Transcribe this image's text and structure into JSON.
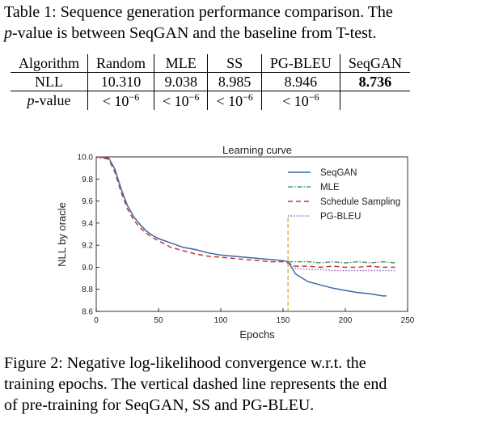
{
  "table_caption": {
    "line1": "Table 1: Sequence generation performance comparison. The",
    "p_symbol": "p",
    "line2_rest": "-value is between SeqGAN and the baseline from T-test."
  },
  "table": {
    "header": [
      "Algorithm",
      "Random",
      "MLE",
      "SS",
      "PG-BLEU",
      "SeqGAN"
    ],
    "nll_label": "NLL",
    "nll": [
      "10.310",
      "9.038",
      "8.985",
      "8.946",
      "8.736"
    ],
    "pvalue_label_p": "p",
    "pvalue_label_rest": "-value",
    "pvalue_base": "< 10",
    "pvalue_exp": "−6",
    "best": "SeqGAN"
  },
  "figure_caption": {
    "line1": "Figure 2: Negative log-likelihood convergence w.r.t. the",
    "line2": "training epochs. The vertical dashed line represents the end",
    "line3": "of pre-training for SeqGAN, SS and PG-BLEU."
  },
  "chart_data": {
    "type": "line",
    "title": "Learning curve",
    "xlabel": "Epochs",
    "ylabel": "NLL by oracle",
    "xlim": [
      0,
      250
    ],
    "ylim": [
      8.6,
      10.0
    ],
    "xticks": [
      "0",
      "50",
      "100",
      "150",
      "200",
      "250"
    ],
    "yticks": [
      "8.6",
      "8.8",
      "9.0",
      "9.2",
      "9.4",
      "9.6",
      "9.8",
      "10.0"
    ],
    "legend_position": "top-right",
    "grid": false,
    "pretrain_end_epoch": 154,
    "vline_top": 9.45,
    "series": [
      {
        "name": "SeqGAN",
        "color": "#3a6aa6",
        "style": "solid",
        "x": [
          0,
          10,
          15,
          20,
          25,
          30,
          35,
          40,
          45,
          50,
          60,
          70,
          80,
          90,
          100,
          110,
          120,
          130,
          140,
          150,
          154,
          160,
          170,
          180,
          190,
          200,
          210,
          220,
          230,
          233
        ],
        "y": [
          10.0,
          9.99,
          9.89,
          9.71,
          9.56,
          9.46,
          9.39,
          9.33,
          9.29,
          9.26,
          9.22,
          9.18,
          9.16,
          9.13,
          9.11,
          9.1,
          9.09,
          9.08,
          9.07,
          9.06,
          9.05,
          8.94,
          8.87,
          8.84,
          8.81,
          8.79,
          8.77,
          8.76,
          8.74,
          8.74
        ]
      },
      {
        "name": "MLE",
        "color": "#4a9a6a",
        "style": "dashdot",
        "x": [
          154,
          160,
          170,
          180,
          190,
          200,
          210,
          220,
          230,
          240
        ],
        "y": [
          9.05,
          9.05,
          9.05,
          9.04,
          9.05,
          9.04,
          9.05,
          9.04,
          9.05,
          9.04
        ]
      },
      {
        "name": "Schedule Sampling",
        "color": "#cc3333",
        "style": "dashed",
        "x": [
          0,
          10,
          15,
          20,
          25,
          30,
          35,
          40,
          45,
          50,
          60,
          70,
          80,
          90,
          100,
          110,
          120,
          130,
          140,
          150,
          154,
          160,
          170,
          180,
          190,
          200,
          210,
          220,
          230,
          240
        ],
        "y": [
          10.0,
          9.98,
          9.86,
          9.68,
          9.53,
          9.43,
          9.36,
          9.31,
          9.27,
          9.24,
          9.18,
          9.15,
          9.12,
          9.1,
          9.09,
          9.08,
          9.07,
          9.06,
          9.05,
          9.05,
          9.04,
          9.01,
          9.01,
          9.0,
          9.01,
          9.0,
          9.0,
          9.01,
          9.0,
          9.0
        ]
      },
      {
        "name": "PG-BLEU",
        "color": "#8c6bc8",
        "style": "dotted",
        "x": [
          154,
          160,
          170,
          180,
          190,
          200,
          210,
          220,
          230,
          240
        ],
        "y": [
          9.04,
          8.99,
          8.98,
          8.98,
          8.97,
          8.97,
          8.97,
          8.97,
          8.97,
          8.97
        ]
      }
    ]
  }
}
